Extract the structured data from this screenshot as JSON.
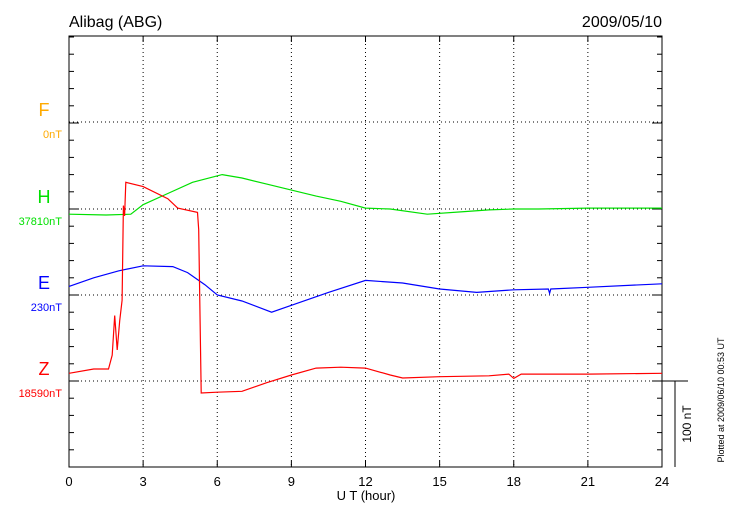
{
  "chart_data": {
    "type": "line",
    "title": "Alibag (ABG)",
    "date": "2009/05/10",
    "xlabel": "U T (hour)",
    "xlim": [
      0,
      24
    ],
    "xticks": [
      0,
      3,
      6,
      9,
      12,
      15,
      18,
      21,
      24
    ],
    "scale_label": "100 nT",
    "scale_nT": 100,
    "footer": "Plotted at 2009/06/10 00:53 UT",
    "grid": true,
    "series": [
      {
        "name": "F",
        "baseline_label": "0nT",
        "color": "#ffaa00",
        "x": [],
        "y": []
      },
      {
        "name": "H",
        "baseline_label": "37810nT",
        "color": "#00e000",
        "x": [
          0,
          1.5,
          2.5,
          3,
          4,
          5,
          6.2,
          7,
          8,
          9,
          10,
          11,
          12,
          13,
          14.5,
          16,
          17,
          18,
          19,
          21,
          22,
          24
        ],
        "y": [
          -6,
          -7,
          -6,
          5,
          18,
          31,
          40,
          36,
          29,
          22,
          15,
          9,
          1,
          0,
          -6,
          -3,
          -1,
          0,
          0,
          1,
          1,
          1
        ]
      },
      {
        "name": "E",
        "baseline_label": "230nT",
        "color": "#0000ff",
        "x": [
          0,
          1,
          2,
          3,
          4.2,
          4.8,
          5.5,
          6,
          7,
          8.2,
          9,
          10.5,
          12,
          13.5,
          15,
          16.5,
          18,
          19.4,
          19.45,
          19.5,
          21,
          24
        ],
        "y": [
          10,
          20,
          28,
          34,
          33,
          26,
          12,
          0,
          -7,
          -20,
          -12,
          3,
          17,
          14,
          7,
          3,
          6,
          7,
          2,
          7,
          9,
          13
        ]
      },
      {
        "name": "Z",
        "baseline_label": "18590nT",
        "color": "#ff0000",
        "x": [
          0,
          1,
          1.6,
          1.75,
          1.85,
          1.95,
          2.05,
          2.15,
          2.2,
          2.25,
          2.3,
          3,
          4,
          4.4,
          5.2,
          5.25,
          5.35,
          6,
          7,
          8,
          9,
          10,
          11,
          12,
          13,
          13.5,
          15,
          17,
          17.8,
          18,
          18.3,
          21,
          24
        ],
        "y": [
          9,
          14,
          14,
          30,
          76,
          36,
          70,
          94,
          204,
          192,
          231,
          226,
          212,
          201,
          196,
          176,
          -14,
          -13,
          -12,
          -2,
          7,
          15,
          16,
          15,
          7,
          3.5,
          5,
          6,
          8,
          3,
          8,
          8,
          9
        ]
      }
    ]
  }
}
